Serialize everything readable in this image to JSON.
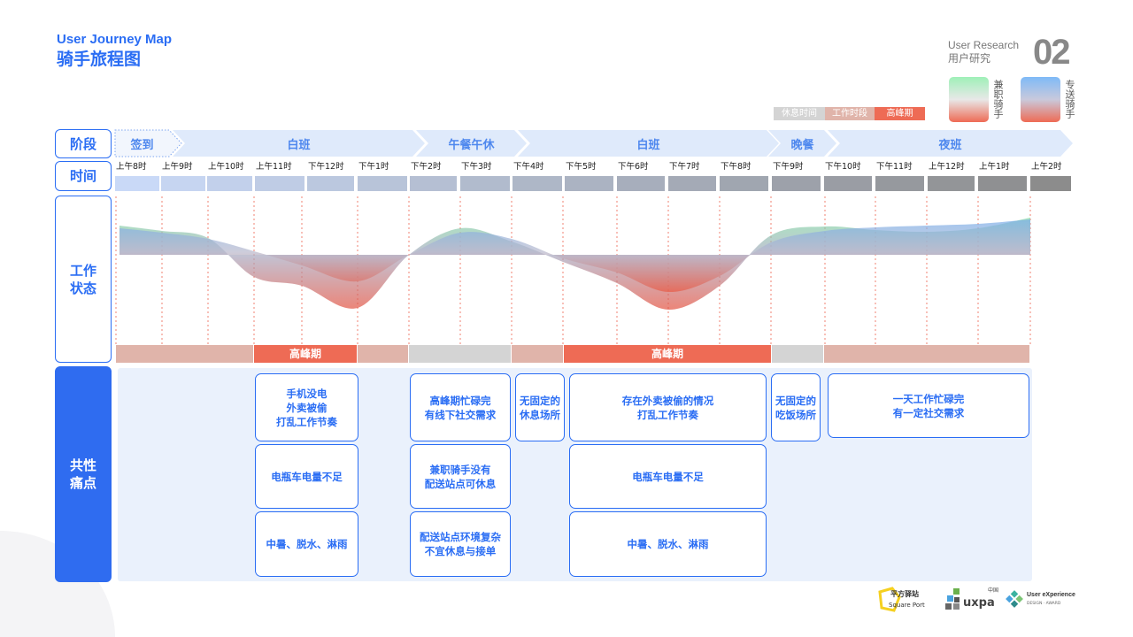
{
  "header": {
    "title_en": "User Journey Map",
    "title_cn": "骑手旅程图",
    "section_en": "User Research",
    "section_cn": "用户研究",
    "section_number": "02"
  },
  "legend": {
    "riders": [
      {
        "label": "兼职骑手",
        "top": "#9ff0b8",
        "bottom": "#ee6b55"
      },
      {
        "label": "专送骑手",
        "top": "#7fbaf7",
        "bottom": "#ee6b55"
      }
    ],
    "periods": [
      {
        "label": "休息时间",
        "color": "#d4d4d4"
      },
      {
        "label": "工作时段",
        "color": "#e0b4aa"
      },
      {
        "label": "高峰期",
        "color": "#ee6b55"
      }
    ]
  },
  "rows": {
    "stage": "阶段",
    "time": "时间",
    "status": "工作\n状态",
    "pain": "共性\n痛点"
  },
  "stages": [
    "签到",
    "白班",
    "午餐午休",
    "白班",
    "晚餐",
    "夜班"
  ],
  "times": [
    "上午8时",
    "上午9时",
    "上午10时",
    "上午11时",
    "下午12时",
    "下午1时",
    "下午2时",
    "下午3时",
    "下午4时",
    "下午5时",
    "下午6时",
    "下午7时",
    "下午8时",
    "下午9时",
    "下午10时",
    "下午11时",
    "上午12时",
    "上午1时",
    "上午2时"
  ],
  "periods": [
    {
      "type": "work",
      "label": ""
    },
    {
      "type": "peak",
      "label": "高峰期"
    },
    {
      "type": "work",
      "label": ""
    },
    {
      "type": "rest",
      "label": ""
    },
    {
      "type": "work",
      "label": ""
    },
    {
      "type": "peak",
      "label": "高峰期"
    },
    {
      "type": "rest",
      "label": ""
    },
    {
      "type": "work",
      "label": ""
    }
  ],
  "chart_data": {
    "type": "area",
    "x": [
      "上午8时",
      "上午9时",
      "上午10时",
      "上午11时",
      "下午12时",
      "下午1时",
      "下午2时",
      "下午3时",
      "下午4时",
      "下午5时",
      "下午6时",
      "下午7时",
      "下午8时",
      "下午9时",
      "下午10时",
      "下午11时",
      "上午12时",
      "上午1时",
      "上午2时"
    ],
    "series": [
      {
        "name": "兼职骑手",
        "values": [
          33,
          27,
          19,
          -25,
          -35,
          -60,
          0,
          30,
          15,
          -8,
          -32,
          -62,
          -35,
          22,
          32,
          28,
          26,
          30,
          42
        ]
      },
      {
        "name": "专送骑手",
        "values": [
          30,
          25,
          18,
          4,
          -12,
          -30,
          0,
          25,
          18,
          -4,
          -20,
          -42,
          -24,
          14,
          27,
          31,
          33,
          35,
          40
        ]
      }
    ],
    "baseline": 0,
    "grid": "vertical dashed"
  },
  "pains": [
    {
      "text": "手机没电\n外卖被偷\n打乱工作节奏"
    },
    {
      "text": "电瓶车电量不足"
    },
    {
      "text": "中暑、脱水、淋雨"
    },
    {
      "text": "高峰期忙碌完\n有线下社交需求"
    },
    {
      "text": "兼职骑手没有\n配送站点可休息"
    },
    {
      "text": "配送站点环境复杂\n不宜休息与接单"
    },
    {
      "text": "无固定的\n休息场所"
    },
    {
      "text": "存在外卖被偷的情况\n打乱工作节奏"
    },
    {
      "text": "电瓶车电量不足"
    },
    {
      "text": "中暑、脱水、淋雨"
    },
    {
      "text": "无固定的\n吃饭场所"
    },
    {
      "text": "一天工作忙碌完\n有一定社交需求"
    }
  ],
  "logos": {
    "squareport_cn": "平方驿站",
    "squareport_en": "Square Port",
    "uxpa": "uxpa",
    "uxpa_cn": "中国",
    "ux_award": "User eXperience",
    "ux_award_sub": "DESIGN · AWARD"
  }
}
